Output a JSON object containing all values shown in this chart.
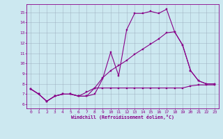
{
  "xlabel": "Windchill (Refroidissement éolien,°C)",
  "x_ticks": [
    0,
    1,
    2,
    3,
    4,
    5,
    6,
    7,
    8,
    9,
    10,
    11,
    12,
    13,
    14,
    15,
    16,
    17,
    18,
    19,
    20,
    21,
    22,
    23
  ],
  "y_ticks": [
    6,
    7,
    8,
    9,
    10,
    11,
    12,
    13,
    14,
    15
  ],
  "ylim": [
    5.6,
    15.8
  ],
  "xlim": [
    -0.5,
    23.5
  ],
  "bg_color": "#cce8f0",
  "line_color": "#880088",
  "grid_color": "#99aabb",
  "line1_y": [
    7.5,
    7.0,
    6.3,
    6.8,
    7.0,
    7.0,
    6.8,
    6.8,
    7.0,
    8.5,
    11.1,
    8.8,
    13.3,
    14.9,
    14.9,
    15.1,
    14.9,
    15.3,
    13.1,
    11.8,
    9.3,
    8.3,
    8.0,
    8.0
  ],
  "line2_y": [
    7.5,
    7.0,
    6.3,
    6.8,
    7.0,
    7.0,
    6.8,
    7.2,
    7.6,
    8.6,
    9.3,
    9.8,
    10.3,
    10.9,
    11.4,
    11.9,
    12.4,
    13.0,
    13.1,
    11.8,
    9.3,
    8.3,
    8.0,
    8.0
  ],
  "line3_y": [
    7.5,
    7.0,
    6.3,
    6.8,
    7.0,
    7.0,
    6.8,
    6.8,
    7.6,
    7.6,
    7.6,
    7.6,
    7.6,
    7.6,
    7.6,
    7.6,
    7.6,
    7.6,
    7.6,
    7.6,
    7.8,
    7.9,
    7.9,
    7.9
  ]
}
